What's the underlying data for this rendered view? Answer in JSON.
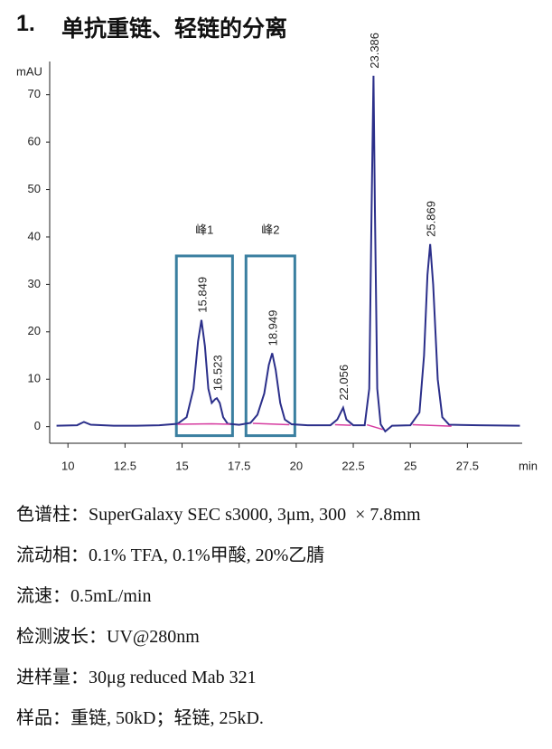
{
  "heading": {
    "number": "1.",
    "text": "单抗重链、轻链的分离"
  },
  "chart_data": {
    "type": "line",
    "ylabel": "mAU",
    "xlabel": "min",
    "xlim": [
      9.2,
      29.9
    ],
    "ylim": [
      -3.5,
      77
    ],
    "xticks": [
      10,
      12.5,
      15,
      17.5,
      20,
      22.5,
      25,
      27.5
    ],
    "yticks": [
      0,
      10,
      20,
      30,
      40,
      50,
      60,
      70
    ],
    "series": [
      {
        "color": "#2b2f8a",
        "x": [
          9.5,
          10.4,
          10.7,
          11.0,
          12,
          13,
          14,
          14.8,
          15.2,
          15.5,
          15.7,
          15.849,
          16.0,
          16.15,
          16.3,
          16.45,
          16.523,
          16.65,
          16.8,
          17.0,
          17.5,
          18.0,
          18.3,
          18.6,
          18.8,
          18.949,
          19.1,
          19.3,
          19.5,
          19.8,
          20.5,
          21.5,
          21.8,
          22.056,
          22.2,
          22.5,
          23.0,
          23.2,
          23.3,
          23.386,
          23.45,
          23.55,
          23.7,
          23.9,
          24.2,
          25.0,
          25.4,
          25.6,
          25.75,
          25.869,
          26.0,
          26.2,
          26.4,
          26.7,
          28,
          29.8
        ],
        "values": [
          0.2,
          0.3,
          1.0,
          0.4,
          0.2,
          0.2,
          0.3,
          0.6,
          2,
          8,
          18,
          22.5,
          17,
          8,
          5,
          5.8,
          6,
          5,
          2,
          0.6,
          0.4,
          0.8,
          2.5,
          7,
          13,
          15.5,
          12,
          5,
          1.5,
          0.5,
          0.3,
          0.3,
          1.5,
          4,
          1.5,
          0.3,
          0.3,
          8,
          45,
          74,
          45,
          8,
          0.5,
          -1.0,
          0.2,
          0.3,
          3,
          15,
          32,
          38.5,
          30,
          10,
          2,
          0.4,
          0.3,
          0.2
        ]
      },
      {
        "color": "#d63ca0",
        "x": [
          14.8,
          16.3,
          null,
          16.3,
          17.1,
          null,
          18.1,
          19.7,
          null,
          21.7,
          22.4,
          null,
          23.1,
          23.8,
          null,
          25.1,
          26.8
        ],
        "values": [
          0.5,
          0.6,
          null,
          0.6,
          0.5,
          null,
          0.7,
          0.4,
          null,
          0.4,
          0.3,
          null,
          0.4,
          -0.6,
          null,
          0.4,
          0.1
        ]
      }
    ],
    "peaks": [
      {
        "time": 15.849,
        "height": 22.5
      },
      {
        "time": 16.523,
        "height": 6
      },
      {
        "time": 18.949,
        "height": 15.5
      },
      {
        "time": 22.056,
        "height": 4
      },
      {
        "time": 23.386,
        "height": 74
      },
      {
        "time": 25.869,
        "height": 38.5
      }
    ],
    "regions": [
      {
        "label": "峰1",
        "xmin": 14.75,
        "xmax": 17.21,
        "ymin": -1.9,
        "ymax": 36
      },
      {
        "label": "峰2",
        "xmin": 17.8,
        "xmax": 19.94,
        "ymin": -1.9,
        "ymax": 36
      }
    ]
  },
  "notes": [
    "色谱柱：SuperGalaxy SEC s3000, 3μm, 300  × 7.8mm",
    "流动相：0.1% TFA, 0.1%甲酸, 20%乙腈",
    "流速：0.5mL/min",
    "检测波长：UV@280nm",
    "进样量：30μg reduced Mab 321",
    "样品：重链, 50kD；轻链, 25kD."
  ]
}
